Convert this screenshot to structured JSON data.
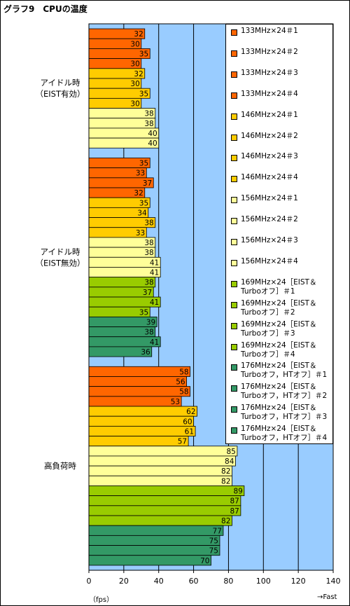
{
  "title": "グラフ9　CPUの温度",
  "unit_label": "（fps）",
  "fast_label": "→Fast",
  "colors": {
    "plot_bg": "#99ccff",
    "grid": "#000000",
    "orange": "#ff6600",
    "gold": "#ffcc00",
    "light_yellow": "#ffff99",
    "yellow_green": "#99cc00",
    "green": "#339966"
  },
  "chart_data": {
    "type": "bar",
    "orientation": "horizontal",
    "title": "グラフ9　CPUの温度",
    "xlim": [
      0,
      140
    ],
    "xticks": [
      0,
      20,
      40,
      60,
      80,
      100,
      120,
      140
    ],
    "xlabel": "（fps）",
    "grid": true,
    "legend_position": "top-right",
    "groups": [
      {
        "label": "アイドル時\n（EIST有効）",
        "series": [
          0,
          1,
          2,
          3,
          4,
          5,
          6,
          7,
          8,
          9,
          10,
          11
        ],
        "values": [
          32,
          30,
          35,
          30,
          32,
          30,
          35,
          30,
          38,
          38,
          40,
          40
        ]
      },
      {
        "label": "アイドル時\n（EIST無効）",
        "series": [
          0,
          1,
          2,
          3,
          4,
          5,
          6,
          7,
          8,
          9,
          10,
          11,
          12,
          13,
          14,
          15,
          16,
          17,
          18,
          19
        ],
        "values": [
          35,
          33,
          37,
          32,
          35,
          34,
          38,
          33,
          38,
          38,
          41,
          41,
          38,
          37,
          41,
          35,
          39,
          38,
          41,
          36
        ]
      },
      {
        "label": "高負荷時",
        "series": [
          0,
          1,
          2,
          3,
          4,
          5,
          6,
          7,
          8,
          9,
          10,
          11,
          12,
          13,
          14,
          15,
          16,
          17,
          18,
          19
        ],
        "values": [
          58,
          56,
          58,
          53,
          62,
          60,
          61,
          57,
          85,
          84,
          82,
          82,
          89,
          87,
          87,
          82,
          77,
          75,
          75,
          70
        ]
      }
    ],
    "series": [
      {
        "name": "133MHz×24＃1",
        "color": "#ff6600"
      },
      {
        "name": "133MHz×24＃2",
        "color": "#ff6600"
      },
      {
        "name": "133MHz×24＃3",
        "color": "#ff6600"
      },
      {
        "name": "133MHz×24＃4",
        "color": "#ff6600"
      },
      {
        "name": "146MHz×24＃1",
        "color": "#ffcc00"
      },
      {
        "name": "146MHz×24＃2",
        "color": "#ffcc00"
      },
      {
        "name": "146MHz×24＃3",
        "color": "#ffcc00"
      },
      {
        "name": "146MHz×24＃4",
        "color": "#ffcc00"
      },
      {
        "name": "156MHz×24＃1",
        "color": "#ffff99"
      },
      {
        "name": "156MHz×24＃2",
        "color": "#ffff99"
      },
      {
        "name": "156MHz×24＃3",
        "color": "#ffff99"
      },
      {
        "name": "156MHz×24＃4",
        "color": "#ffff99"
      },
      {
        "name": "169MHz×24［EIST＆Turboオフ］＃1",
        "color": "#99cc00"
      },
      {
        "name": "169MHz×24［EIST＆Turboオフ］＃2",
        "color": "#99cc00"
      },
      {
        "name": "169MHz×24［EIST＆Turboオフ］＃3",
        "color": "#99cc00"
      },
      {
        "name": "169MHz×24［EIST＆Turboオフ］＃4",
        "color": "#99cc00"
      },
      {
        "name": "176MHz×24［EIST＆Turboオフ，HTオフ］＃1",
        "color": "#339966"
      },
      {
        "name": "176MHz×24［EIST＆Turboオフ，HTオフ］＃2",
        "color": "#339966"
      },
      {
        "name": "176MHz×24［EIST＆Turboオフ，HTオフ］＃3",
        "color": "#339966"
      },
      {
        "name": "176MHz×24［EIST＆Turboオフ，HTオフ］＃4",
        "color": "#339966"
      }
    ]
  }
}
